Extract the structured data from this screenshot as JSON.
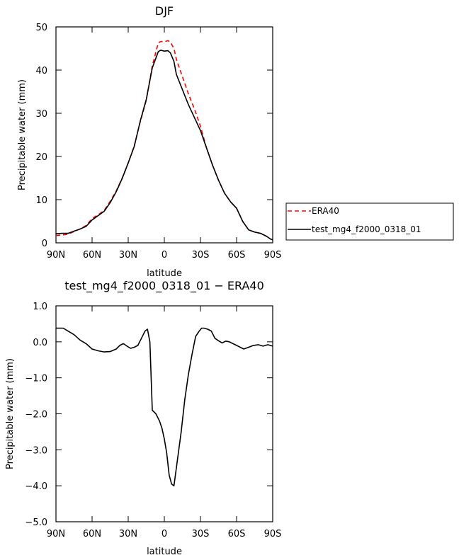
{
  "chart_data": [
    {
      "type": "line",
      "title": "DJF",
      "xlabel": "latitude",
      "ylabel": "Precipitable water  (mm)",
      "xlim": [
        -90,
        90
      ],
      "ylim": [
        0,
        50
      ],
      "x_ticks": [
        -90,
        -60,
        -30,
        0,
        30,
        60,
        90
      ],
      "x_tick_labels": [
        "90N",
        "60N",
        "30N",
        "0",
        "30S",
        "60S",
        "90S"
      ],
      "y_ticks": [
        0,
        10,
        20,
        30,
        40,
        50
      ],
      "y_tick_labels": [
        "0",
        "10",
        "20",
        "30",
        "40",
        "50"
      ],
      "grid": false,
      "legend": {
        "placement": "outside-right",
        "entries": [
          "ERA40",
          "test_mg4_f2000_0318_01"
        ]
      },
      "series": [
        {
          "name": "ERA40",
          "color": "#ff0000",
          "dash": "dashed",
          "x": [
            -90,
            -85,
            -80,
            -75,
            -70,
            -65,
            -60,
            -55,
            -50,
            -45,
            -40,
            -35,
            -30,
            -25,
            -20,
            -15,
            -10,
            -5,
            -3,
            0,
            3,
            5,
            8,
            10,
            15,
            20,
            25,
            30,
            35,
            40,
            45,
            50,
            55,
            60,
            65,
            70,
            75,
            80,
            85,
            88,
            90
          ],
          "y": [
            1.7,
            1.8,
            2.0,
            2.6,
            3.2,
            4.0,
            5.6,
            6.5,
            7.5,
            9.6,
            12.0,
            15.0,
            18.5,
            22.5,
            28.0,
            33.0,
            41.0,
            46.3,
            46.6,
            46.6,
            46.8,
            46.5,
            45.0,
            42.5,
            38.5,
            34.5,
            31.0,
            27.0,
            22.0,
            18.0,
            14.5,
            11.5,
            9.5,
            8.0,
            5.0,
            3.0,
            2.5,
            2.2,
            1.5,
            0.9,
            0.7
          ]
        },
        {
          "name": "test_mg4_f2000_0318_01",
          "color": "#000000",
          "dash": "solid",
          "x": [
            -90,
            -85,
            -80,
            -75,
            -70,
            -65,
            -60,
            -55,
            -50,
            -45,
            -40,
            -35,
            -30,
            -25,
            -20,
            -15,
            -10,
            -5,
            -3,
            0,
            3,
            5,
            8,
            10,
            15,
            20,
            25,
            30,
            35,
            40,
            45,
            50,
            55,
            60,
            65,
            70,
            75,
            80,
            85,
            88,
            90
          ],
          "y": [
            2.1,
            2.2,
            2.2,
            2.7,
            3.2,
            3.8,
            5.3,
            6.3,
            7.3,
            9.3,
            11.8,
            14.9,
            18.5,
            22.3,
            28.2,
            33.2,
            40.5,
            44.3,
            44.6,
            44.4,
            44.5,
            44.0,
            42.0,
            39.0,
            35.5,
            32.0,
            29.0,
            26.0,
            22.0,
            18.0,
            14.5,
            11.5,
            9.5,
            8.0,
            5.0,
            3.0,
            2.5,
            2.2,
            1.5,
            0.9,
            0.7
          ]
        }
      ]
    },
    {
      "type": "line",
      "title": "test_mg4_f2000_0318_01 − ERA40",
      "xlabel": "latitude",
      "ylabel": "Precipitable water  (mm)",
      "xlim": [
        -90,
        90
      ],
      "ylim": [
        -5.0,
        1.0
      ],
      "x_ticks": [
        -90,
        -60,
        -30,
        0,
        30,
        60,
        90
      ],
      "x_tick_labels": [
        "90N",
        "60N",
        "30N",
        "0",
        "30S",
        "60S",
        "90S"
      ],
      "y_ticks": [
        -5.0,
        -4.0,
        -3.0,
        -2.0,
        -1.0,
        0.0,
        1.0
      ],
      "y_tick_labels": [
        "−5.0",
        "−4.0",
        "−3.0",
        "−2.0",
        "−1.0",
        "0.0",
        "1.0"
      ],
      "grid": false,
      "series": [
        {
          "color": "#000000",
          "dash": "solid",
          "x": [
            -90,
            -87,
            -84,
            -80,
            -75,
            -70,
            -65,
            -60,
            -55,
            -50,
            -45,
            -40,
            -37,
            -34,
            -31,
            -28,
            -25,
            -22,
            -19,
            -16,
            -14,
            -12,
            -10,
            -7,
            -4,
            -2,
            0,
            2,
            4,
            6,
            8,
            10,
            12,
            14,
            17,
            20,
            23,
            26,
            29,
            31,
            33,
            36,
            39,
            42,
            45,
            48,
            51,
            54,
            57,
            60,
            63,
            66,
            70,
            74,
            78,
            82,
            86,
            88,
            90
          ],
          "y": [
            0.38,
            0.38,
            0.38,
            0.3,
            0.2,
            0.05,
            -0.05,
            -0.2,
            -0.25,
            -0.28,
            -0.27,
            -0.2,
            -0.1,
            -0.05,
            -0.12,
            -0.18,
            -0.15,
            -0.1,
            0.1,
            0.3,
            0.35,
            0.0,
            -1.9,
            -2.0,
            -2.2,
            -2.4,
            -2.7,
            -3.1,
            -3.7,
            -3.95,
            -4.0,
            -3.5,
            -3.0,
            -2.5,
            -1.6,
            -0.9,
            -0.35,
            0.15,
            0.3,
            0.38,
            0.38,
            0.35,
            0.3,
            0.1,
            0.03,
            -0.03,
            0.02,
            0.0,
            -0.05,
            -0.1,
            -0.15,
            -0.2,
            -0.15,
            -0.1,
            -0.08,
            -0.12,
            -0.08,
            -0.1,
            -0.12
          ]
        }
      ]
    }
  ]
}
